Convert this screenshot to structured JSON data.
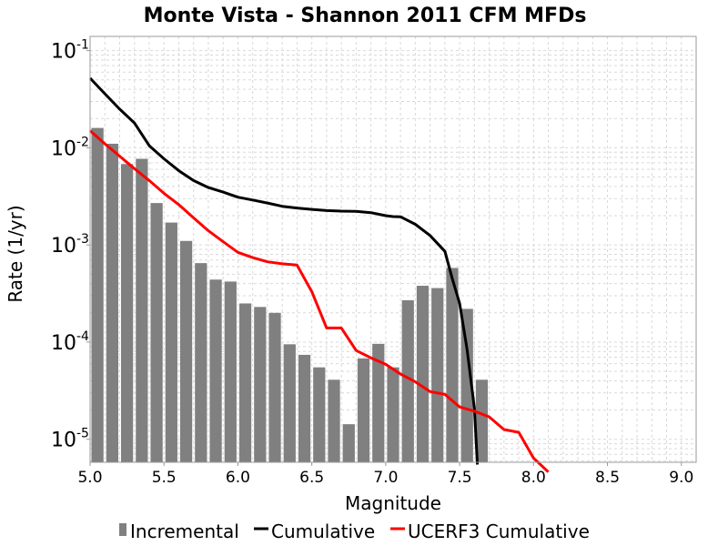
{
  "chart_data": {
    "type": "bar",
    "title": "Monte Vista - Shannon 2011 CFM MFDs",
    "xlabel": "Magnitude",
    "ylabel": "Rate (1/yr)",
    "xlim": [
      5.0,
      9.1
    ],
    "ylim": [
      5.8e-06,
      0.14
    ],
    "yscale": "log",
    "grid": true,
    "legend_position": "bottom",
    "x_ticks": [
      "5.0",
      "5.5",
      "6.0",
      "6.5",
      "7.0",
      "7.5",
      "8.0",
      "8.5",
      "9.0"
    ],
    "y_ticks": [
      {
        "base": "10",
        "exp": "-1",
        "value": 0.1
      },
      {
        "base": "10",
        "exp": "-2",
        "value": 0.01
      },
      {
        "base": "10",
        "exp": "-3",
        "value": 0.001
      },
      {
        "base": "10",
        "exp": "-4",
        "value": 0.0001
      },
      {
        "base": "10",
        "exp": "-5",
        "value": 1e-05
      }
    ],
    "series": [
      {
        "name": "Incremental",
        "kind": "bar",
        "color": "#808080",
        "x": [
          5.05,
          5.15,
          5.25,
          5.35,
          5.45,
          5.55,
          5.65,
          5.75,
          5.85,
          5.95,
          6.05,
          6.15,
          6.25,
          6.35,
          6.45,
          6.55,
          6.65,
          6.75,
          6.85,
          6.95,
          7.05,
          7.15,
          7.25,
          7.35,
          7.45,
          7.55,
          7.65
        ],
        "values": [
          0.016,
          0.011,
          0.0068,
          0.0077,
          0.0027,
          0.0017,
          0.0011,
          0.00065,
          0.00044,
          0.00042,
          0.00025,
          0.00023,
          0.0002,
          9.5e-05,
          7.4e-05,
          5.5e-05,
          4.1e-05,
          1.43e-05,
          6.8e-05,
          9.6e-05,
          5.5e-05,
          0.00027,
          0.00038,
          0.00036,
          0.00058,
          0.00022,
          4.1e-05
        ]
      },
      {
        "name": "Cumulative",
        "kind": "line",
        "color": "#000000",
        "x": [
          5.0,
          5.1,
          5.2,
          5.3,
          5.4,
          5.5,
          5.6,
          5.7,
          5.8,
          5.9,
          6.0,
          6.1,
          6.2,
          6.3,
          6.4,
          6.5,
          6.6,
          6.7,
          6.8,
          6.9,
          7.0,
          7.05,
          7.1,
          7.2,
          7.3,
          7.4,
          7.45,
          7.5,
          7.55,
          7.6,
          7.62
        ],
        "values": [
          0.052,
          0.036,
          0.025,
          0.018,
          0.0105,
          0.0077,
          0.0058,
          0.0046,
          0.0039,
          0.0035,
          0.0031,
          0.0029,
          0.0027,
          0.0025,
          0.0024,
          0.00232,
          0.00226,
          0.00223,
          0.00222,
          0.00215,
          0.002,
          0.00196,
          0.00195,
          0.00163,
          0.00125,
          0.00086,
          0.00045,
          0.00025,
          8.5e-05,
          2.1e-05,
          5.5e-06
        ]
      },
      {
        "name": "UCERF3 Cumulative",
        "kind": "line",
        "color": "#ff0000",
        "x": [
          5.0,
          5.1,
          5.2,
          5.3,
          5.4,
          5.5,
          5.6,
          5.7,
          5.8,
          5.9,
          6.0,
          6.1,
          6.2,
          6.3,
          6.4,
          6.5,
          6.6,
          6.7,
          6.8,
          6.9,
          7.0,
          7.1,
          7.2,
          7.3,
          7.4,
          7.5,
          7.6,
          7.7,
          7.8,
          7.9,
          8.0,
          8.1
        ],
        "values": [
          0.015,
          0.011,
          0.0082,
          0.0061,
          0.0046,
          0.0034,
          0.0026,
          0.0019,
          0.0014,
          0.00108,
          0.00084,
          0.00074,
          0.00067,
          0.00064,
          0.00062,
          0.00033,
          0.00014,
          0.00014,
          8.2e-05,
          6.9e-05,
          5.9e-05,
          4.7e-05,
          3.9e-05,
          3.1e-05,
          2.9e-05,
          2.15e-05,
          1.95e-05,
          1.7e-05,
          1.26e-05,
          1.18e-05,
          6.4e-06,
          4.6e-06
        ]
      }
    ]
  }
}
